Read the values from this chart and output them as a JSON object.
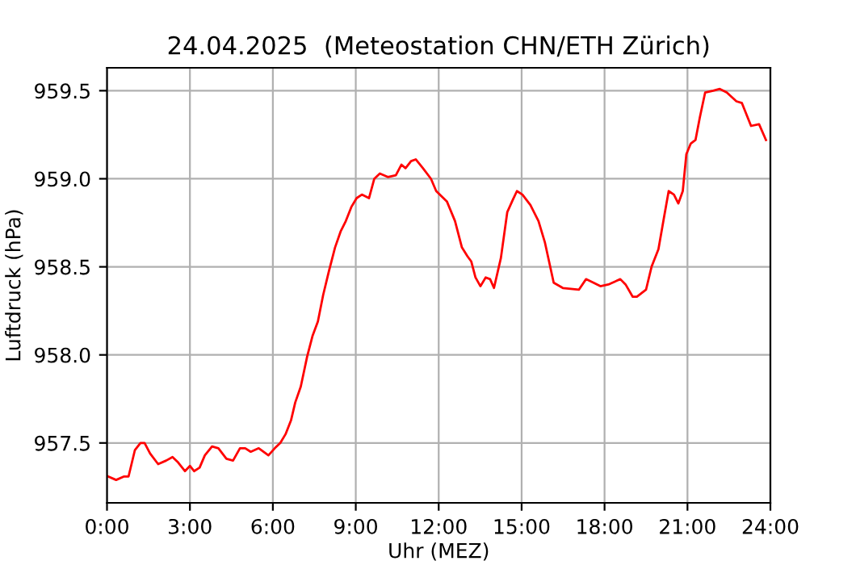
{
  "chart_data": {
    "type": "line",
    "title": "24.04.2025  (Meteostation CHN/ETH Zürich)",
    "xlabel": "Uhr (MEZ)",
    "ylabel": "Luftdruck (hPa)",
    "xlim": [
      0,
      24
    ],
    "ylim": [
      957.16,
      959.63
    ],
    "xticks": [
      {
        "value": 0,
        "label": "0:00"
      },
      {
        "value": 3,
        "label": "3:00"
      },
      {
        "value": 6,
        "label": "6:00"
      },
      {
        "value": 9,
        "label": "9:00"
      },
      {
        "value": 12,
        "label": "12:00"
      },
      {
        "value": 15,
        "label": "15:00"
      },
      {
        "value": 18,
        "label": "18:00"
      },
      {
        "value": 21,
        "label": "21:00"
      },
      {
        "value": 24,
        "label": "24:00"
      }
    ],
    "yticks": [
      {
        "value": 957.5,
        "label": "957.5"
      },
      {
        "value": 958.0,
        "label": "958.0"
      },
      {
        "value": 958.5,
        "label": "958.5"
      },
      {
        "value": 959.0,
        "label": "959.0"
      },
      {
        "value": 959.5,
        "label": "959.5"
      }
    ],
    "grid": true,
    "line_style": "solid",
    "series": [
      {
        "color": "#ff0000",
        "x": [
          0.04,
          0.33,
          0.62,
          0.78,
          1.01,
          1.21,
          1.36,
          1.56,
          1.85,
          2.14,
          2.37,
          2.57,
          2.82,
          3.0,
          3.15,
          3.35,
          3.54,
          3.8,
          4.03,
          4.32,
          4.56,
          4.81,
          5.0,
          5.2,
          5.49,
          5.84,
          6.07,
          6.27,
          6.46,
          6.66,
          6.81,
          7.01,
          7.24,
          7.44,
          7.63,
          7.82,
          8.02,
          8.25,
          8.45,
          8.64,
          8.84,
          9.03,
          9.22,
          9.48,
          9.67,
          9.87,
          10.16,
          10.45,
          10.65,
          10.8,
          11.0,
          11.17,
          11.43,
          11.72,
          11.91,
          12.3,
          12.59,
          12.84,
          13.04,
          13.18,
          13.33,
          13.51,
          13.7,
          13.86,
          14.0,
          14.25,
          14.48,
          14.68,
          14.83,
          15.03,
          15.32,
          15.61,
          15.84,
          16.16,
          16.49,
          17.07,
          17.33,
          17.6,
          17.85,
          18.14,
          18.57,
          18.76,
          19.02,
          19.17,
          19.5,
          19.7,
          19.95,
          20.15,
          20.32,
          20.51,
          20.67,
          20.83,
          20.96,
          21.12,
          21.29,
          21.45,
          21.64,
          21.93,
          22.17,
          22.42,
          22.77,
          22.97,
          23.3,
          23.59,
          23.84
        ],
        "values": [
          957.31,
          957.29,
          957.31,
          957.31,
          957.46,
          957.5,
          957.5,
          957.44,
          957.38,
          957.4,
          957.42,
          957.39,
          957.34,
          957.37,
          957.34,
          957.36,
          957.43,
          957.48,
          957.47,
          957.41,
          957.4,
          957.47,
          957.47,
          957.45,
          957.47,
          957.43,
          957.47,
          957.5,
          957.55,
          957.63,
          957.73,
          957.82,
          957.99,
          958.11,
          958.19,
          958.34,
          958.47,
          958.61,
          958.7,
          958.76,
          958.84,
          958.89,
          958.91,
          958.89,
          959.0,
          959.03,
          959.01,
          959.02,
          959.08,
          959.06,
          959.1,
          959.11,
          959.06,
          959.0,
          958.93,
          958.87,
          958.76,
          958.61,
          958.56,
          958.53,
          958.44,
          958.39,
          958.44,
          958.43,
          958.38,
          958.55,
          958.81,
          958.88,
          958.93,
          958.91,
          958.85,
          958.76,
          958.64,
          958.41,
          958.38,
          958.37,
          958.43,
          958.41,
          958.39,
          958.4,
          958.43,
          958.4,
          958.33,
          958.33,
          958.37,
          958.5,
          958.6,
          958.78,
          958.93,
          958.91,
          958.86,
          958.93,
          959.14,
          959.2,
          959.22,
          959.35,
          959.49,
          959.5,
          959.51,
          959.49,
          959.44,
          959.43,
          959.3,
          959.31,
          959.22
        ]
      }
    ]
  }
}
